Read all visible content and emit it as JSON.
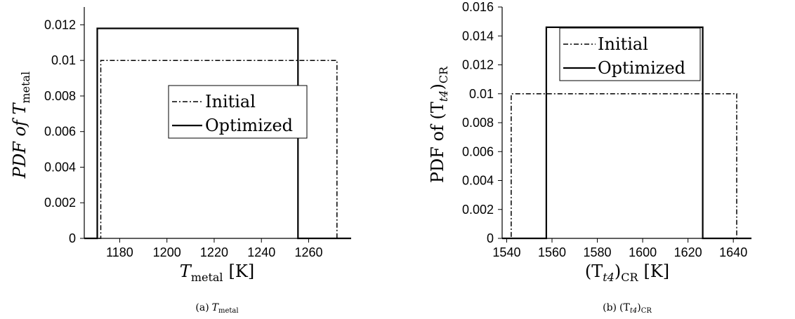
{
  "chart_data": [
    {
      "type": "line",
      "caption_prefix": "(a)",
      "caption_main": "T",
      "caption_sub": "metal",
      "xlabel_main": "T",
      "xlabel_sub": "metal",
      "xlabel_unit": "[K]",
      "ylabel_main": "PDF of T",
      "ylabel_sub": "metal",
      "xlim": [
        1165,
        1278
      ],
      "ylim": [
        0,
        0.013
      ],
      "xticks": [
        1180,
        1200,
        1220,
        1240,
        1260
      ],
      "xtick_labels": [
        "1180",
        "1200",
        "1220",
        "1240",
        "1260"
      ],
      "yticks": [
        0,
        0.002,
        0.004,
        0.006,
        0.008,
        0.01,
        0.012
      ],
      "ytick_labels": [
        "0",
        "0.002",
        "0.004",
        "0.006",
        "0.008",
        "0.01",
        "0.012"
      ],
      "legend_position": "upper-right",
      "series": [
        {
          "name": "Initial",
          "style": "dashdot",
          "x": [
            1171,
            1172,
            1172,
            1272,
            1272,
            1278
          ],
          "y": [
            0,
            0,
            0.01,
            0.01,
            0,
            0
          ]
        },
        {
          "name": "Optimized",
          "style": "solid",
          "x": [
            1165,
            1170.5,
            1170.5,
            1255.5,
            1255.5,
            1278
          ],
          "y": [
            0,
            0,
            0.0118,
            0.0118,
            0,
            0
          ]
        }
      ]
    },
    {
      "type": "line",
      "caption_prefix": "(b)",
      "caption_main": "(T",
      "caption_sub": "t4",
      "caption_close": ")",
      "caption_sub2": "CR",
      "xlabel_main": "(T",
      "xlabel_sub": "t4",
      "xlabel_close": ")",
      "xlabel_sub2": "CR",
      "xlabel_unit": "[K]",
      "ylabel_main": "PDF of (T",
      "ylabel_sub": "t4",
      "ylabel_close": ")",
      "ylabel_sub2": "CR",
      "xlim": [
        1538,
        1648
      ],
      "ylim": [
        0,
        0.016
      ],
      "xticks": [
        1540,
        1560,
        1580,
        1600,
        1620,
        1640
      ],
      "xtick_labels": [
        "1540",
        "1560",
        "1580",
        "1600",
        "1620",
        "1640"
      ],
      "yticks": [
        0,
        0.002,
        0.004,
        0.006,
        0.008,
        0.01,
        0.012,
        0.014,
        0.016
      ],
      "ytick_labels": [
        "0",
        "0.002",
        "0.004",
        "0.006",
        "0.008",
        "0.01",
        "0.012",
        "0.014",
        "0.016"
      ],
      "legend_position": "upper-center",
      "series": [
        {
          "name": "Initial",
          "style": "dashdot",
          "x": [
            1538,
            1542,
            1542,
            1641.5,
            1641.5,
            1648
          ],
          "y": [
            0,
            0,
            0.01,
            0.01,
            0,
            0
          ]
        },
        {
          "name": "Optimized",
          "style": "solid",
          "x": [
            1538,
            1557.5,
            1557.5,
            1626.5,
            1626.5,
            1648
          ],
          "y": [
            0,
            0,
            0.0146,
            0.0146,
            0,
            0
          ]
        }
      ]
    }
  ]
}
